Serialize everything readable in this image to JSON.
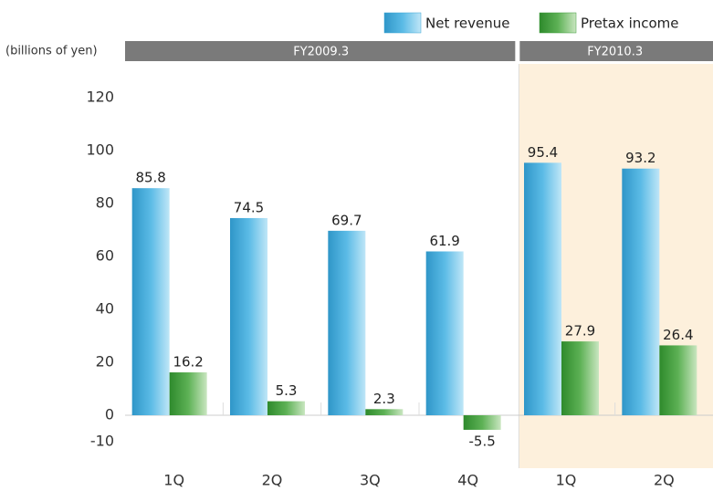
{
  "chart_data": {
    "type": "bar",
    "y_label": "(billions of yen)",
    "groups": [
      {
        "label": "FY2009.3",
        "categories": [
          "1Q",
          "2Q",
          "3Q",
          "4Q"
        ]
      },
      {
        "label": "FY2010.3",
        "categories": [
          "1Q",
          "2Q"
        ]
      }
    ],
    "series": [
      {
        "name": "Net revenue",
        "color": "#3aa6d4",
        "values": [
          85.8,
          74.5,
          69.7,
          61.9,
          95.4,
          93.2
        ]
      },
      {
        "name": "Pretax income",
        "color": "#3d9a3a",
        "values": [
          16.2,
          5.3,
          2.3,
          -5.5,
          27.9,
          26.4
        ]
      }
    ],
    "ylim": [
      -20,
      130
    ],
    "yticks": [
      -10,
      0,
      20,
      40,
      60,
      80,
      100,
      120
    ],
    "grid": false
  }
}
